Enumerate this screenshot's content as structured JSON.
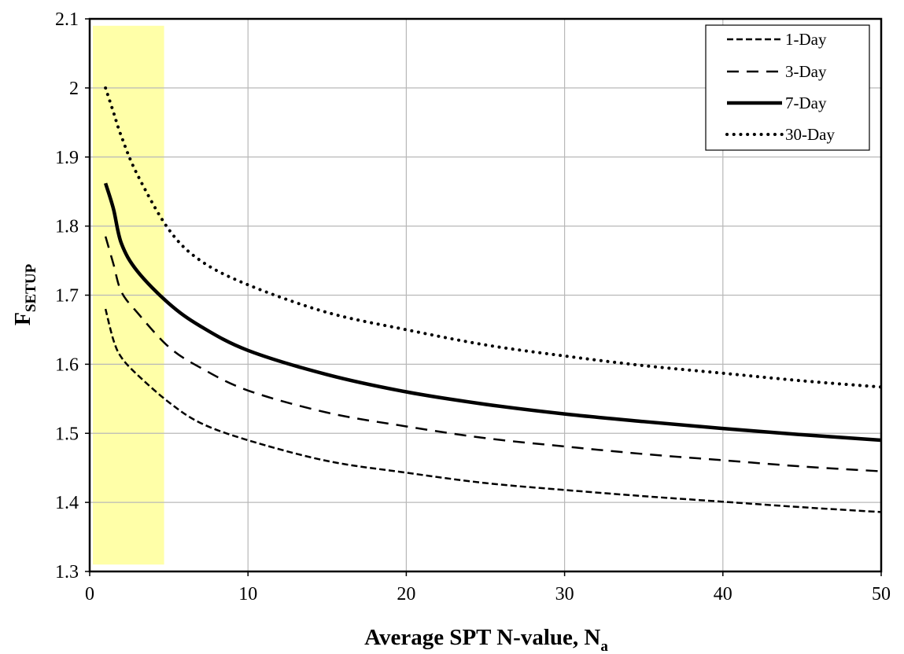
{
  "chart_data": {
    "type": "line",
    "xlabel": "Average SPT N-value, N",
    "xlabel_sub": "a",
    "ylabel": "F",
    "ylabel_sub": "SETUP",
    "xlim": [
      0,
      50
    ],
    "ylim": [
      1.3,
      2.1
    ],
    "xticks": [
      "0",
      "10",
      "20",
      "30",
      "40",
      "50"
    ],
    "xtick_values": [
      0,
      10,
      20,
      30,
      40,
      50
    ],
    "yticks": [
      "1.3",
      "1.4",
      "1.5",
      "1.6",
      "1.7",
      "1.8",
      "1.9",
      "2",
      "2.1"
    ],
    "ytick_values": [
      1.3,
      1.4,
      1.5,
      1.6,
      1.7,
      1.8,
      1.9,
      2.0,
      2.1
    ],
    "grid": true,
    "legend_position": "top-right",
    "highlight_region": {
      "x": [
        0.2,
        4.7
      ],
      "y": [
        1.31,
        2.09
      ],
      "color": "#ffffa8"
    },
    "series": [
      {
        "name": "1-Day",
        "style": "short-dash",
        "x": [
          1,
          1.5,
          2,
          3,
          5,
          7,
          10,
          15,
          20,
          25,
          30,
          35,
          40,
          45,
          50
        ],
        "y": [
          1.68,
          1.635,
          1.61,
          1.585,
          1.545,
          1.515,
          1.49,
          1.46,
          1.443,
          1.428,
          1.418,
          1.409,
          1.401,
          1.393,
          1.386
        ]
      },
      {
        "name": "3-Day",
        "style": "long-dash",
        "x": [
          1,
          1.5,
          2,
          3,
          5,
          7,
          10,
          15,
          20,
          25,
          30,
          35,
          40,
          45,
          50
        ],
        "y": [
          1.785,
          1.745,
          1.705,
          1.675,
          1.625,
          1.595,
          1.562,
          1.53,
          1.51,
          1.493,
          1.481,
          1.47,
          1.461,
          1.452,
          1.445
        ]
      },
      {
        "name": "7-Day",
        "style": "solid",
        "x": [
          1,
          1.5,
          2,
          3,
          5,
          7,
          10,
          15,
          20,
          25,
          30,
          35,
          40,
          45,
          50
        ],
        "y": [
          1.862,
          1.825,
          1.775,
          1.735,
          1.688,
          1.655,
          1.62,
          1.585,
          1.56,
          1.542,
          1.528,
          1.517,
          1.507,
          1.498,
          1.49
        ]
      },
      {
        "name": "30-Day",
        "style": "dotted",
        "x": [
          1,
          1.5,
          2,
          3,
          5,
          7,
          10,
          15,
          20,
          25,
          30,
          35,
          40,
          45,
          50
        ],
        "y": [
          2.0,
          1.965,
          1.93,
          1.875,
          1.795,
          1.75,
          1.715,
          1.675,
          1.65,
          1.628,
          1.612,
          1.598,
          1.587,
          1.576,
          1.567
        ]
      }
    ]
  }
}
